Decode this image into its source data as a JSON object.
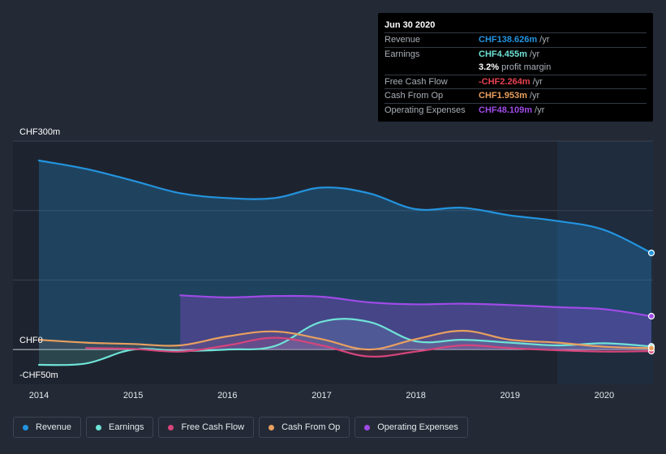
{
  "chart_data": {
    "type": "area",
    "y_top_label": "CHF300m",
    "y_zero_label": "CHF0",
    "y_bottom_label": "-CHF50m",
    "ylim": [
      -50,
      300
    ],
    "xlim": [
      2014,
      2020.5
    ],
    "x_ticks": [
      "2014",
      "2015",
      "2016",
      "2017",
      "2018",
      "2019",
      "2020"
    ],
    "forecast_start": 2019.5,
    "series": [
      {
        "name": "Revenue",
        "color": "#2394df",
        "points": [
          [
            2014,
            272
          ],
          [
            2014.5,
            260
          ],
          [
            2015,
            243
          ],
          [
            2015.5,
            225
          ],
          [
            2016,
            218
          ],
          [
            2016.5,
            218
          ],
          [
            2017,
            233
          ],
          [
            2017.5,
            225
          ],
          [
            2018,
            202
          ],
          [
            2018.5,
            204
          ],
          [
            2019,
            193
          ],
          [
            2019.5,
            185
          ],
          [
            2020,
            172
          ],
          [
            2020.5,
            139
          ]
        ]
      },
      {
        "name": "Earnings",
        "color": "#6fe3d7",
        "points": [
          [
            2014,
            -22
          ],
          [
            2014.5,
            -20
          ],
          [
            2015,
            0
          ],
          [
            2015.5,
            -2
          ],
          [
            2016,
            0
          ],
          [
            2016.5,
            5
          ],
          [
            2017,
            40
          ],
          [
            2017.5,
            40
          ],
          [
            2018,
            12
          ],
          [
            2018.5,
            14
          ],
          [
            2019,
            10
          ],
          [
            2019.5,
            6
          ],
          [
            2020,
            9
          ],
          [
            2020.5,
            4.5
          ]
        ]
      },
      {
        "name": "Free Cash Flow",
        "color": "#d6457c",
        "points": [
          [
            2014.5,
            2
          ],
          [
            2015,
            1
          ],
          [
            2015.5,
            -3
          ],
          [
            2016,
            6
          ],
          [
            2016.5,
            17
          ],
          [
            2017,
            6
          ],
          [
            2017.5,
            -10
          ],
          [
            2018,
            -3
          ],
          [
            2018.5,
            6
          ],
          [
            2019,
            2
          ],
          [
            2019.5,
            -1
          ],
          [
            2020,
            -3
          ],
          [
            2020.5,
            -2.3
          ]
        ]
      },
      {
        "name": "Cash From Op",
        "color": "#e8a05f",
        "points": [
          [
            2014,
            14
          ],
          [
            2014.5,
            10
          ],
          [
            2015,
            8
          ],
          [
            2015.5,
            6
          ],
          [
            2016,
            19
          ],
          [
            2016.5,
            26
          ],
          [
            2017,
            15
          ],
          [
            2017.5,
            0
          ],
          [
            2018,
            15
          ],
          [
            2018.5,
            27
          ],
          [
            2019,
            14
          ],
          [
            2019.5,
            10
          ],
          [
            2020,
            4
          ],
          [
            2020.5,
            2
          ]
        ]
      },
      {
        "name": "Operating Expenses",
        "color": "#9f4be6",
        "points": [
          [
            2015.5,
            78
          ],
          [
            2016,
            75
          ],
          [
            2016.5,
            77
          ],
          [
            2017,
            76
          ],
          [
            2017.5,
            68
          ],
          [
            2018,
            65
          ],
          [
            2018.5,
            66
          ],
          [
            2019,
            64
          ],
          [
            2019.5,
            61
          ],
          [
            2020,
            58
          ],
          [
            2020.5,
            48
          ]
        ]
      }
    ]
  },
  "tooltip": {
    "date": "Jun 30 2020",
    "rows": [
      {
        "label": "Revenue",
        "value": "CHF138.626m",
        "unit": "/yr",
        "color": "#2394df"
      },
      {
        "label": "Earnings",
        "value": "CHF4.455m",
        "unit": "/yr",
        "color": "#6fe3d7"
      },
      {
        "label": "",
        "value": "3.2%",
        "unit": "profit margin",
        "color": "#ffffff"
      },
      {
        "label": "Free Cash Flow",
        "value": "-CHF2.264m",
        "unit": "/yr",
        "color": "#e8414f"
      },
      {
        "label": "Cash From Op",
        "value": "CHF1.953m",
        "unit": "/yr",
        "color": "#e8a05f"
      },
      {
        "label": "Operating Expenses",
        "value": "CHF48.109m",
        "unit": "/yr",
        "color": "#9f4be6"
      }
    ]
  },
  "legend": [
    {
      "label": "Revenue",
      "color": "#2394df"
    },
    {
      "label": "Earnings",
      "color": "#6fe3d7"
    },
    {
      "label": "Free Cash Flow",
      "color": "#d6457c"
    },
    {
      "label": "Cash From Op",
      "color": "#e8a05f"
    },
    {
      "label": "Operating Expenses",
      "color": "#9f4be6"
    }
  ]
}
